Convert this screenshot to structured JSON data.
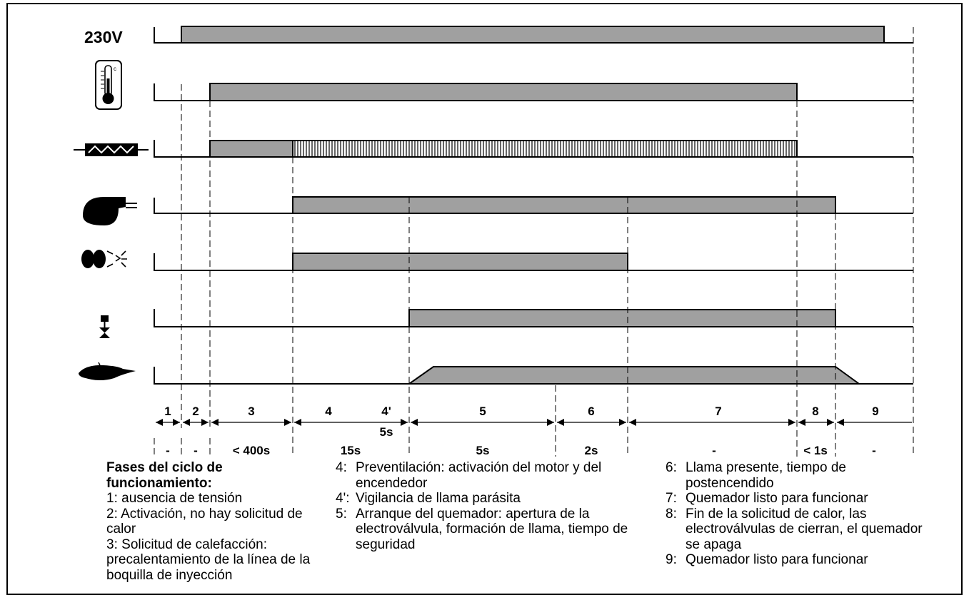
{
  "signals": [
    {
      "id": "voltage",
      "label": "230V",
      "icon": "none"
    },
    {
      "id": "thermostat",
      "label": "",
      "icon": "thermometer-icon"
    },
    {
      "id": "preheater",
      "label": "",
      "icon": "heater-resistor-icon"
    },
    {
      "id": "motor",
      "label": "",
      "icon": "fan-motor-icon"
    },
    {
      "id": "igniter",
      "label": "",
      "icon": "igniter-spark-icon"
    },
    {
      "id": "valve",
      "label": "",
      "icon": "solenoid-valve-icon"
    },
    {
      "id": "flame",
      "label": "",
      "icon": "flame-icon"
    }
  ],
  "phases": [
    {
      "num": "1",
      "duration": "-"
    },
    {
      "num": "2",
      "duration": "-"
    },
    {
      "num": "3",
      "duration": "< 400s"
    },
    {
      "num": "4",
      "duration": "15s"
    },
    {
      "num": "4'",
      "duration": "5s"
    },
    {
      "num": "5",
      "duration": "5s"
    },
    {
      "num": "6",
      "duration": "2s"
    },
    {
      "num": "7",
      "duration": "-"
    },
    {
      "num": "8",
      "duration": "< 1s"
    },
    {
      "num": "9",
      "duration": "-"
    }
  ],
  "legend": {
    "title": "Fases del ciclo de funcionamiento:",
    "items": [
      {
        "num": "1:",
        "text": "ausencia de tensión"
      },
      {
        "num": "2:",
        "text": "Activación, no hay solicitud de calor"
      },
      {
        "num": "3:",
        "text": "Solicitud de calefacción: precalentamiento de la línea de la boquilla de inyección"
      },
      {
        "num": "4:",
        "text": "Preventilación: activación del motor y del encendedor"
      },
      {
        "num": "4':",
        "text": "Vigilancia de llama parásita"
      },
      {
        "num": "5:",
        "text": "Arranque del quemador: apertura de la electroválvula, formación de llama, tiempo de seguridad"
      },
      {
        "num": "6:",
        "text": "Llama presente, tiempo de postencendido"
      },
      {
        "num": "7:",
        "text": "Quemador listo para funcionar"
      },
      {
        "num": "8:",
        "text": "Fin de la solicitud de calor, las electroválvulas de cierran, el quemador se apaga"
      },
      {
        "num": "9:",
        "text": "Quemador listo para funcionar"
      }
    ]
  },
  "colors": {
    "bar_fill": "#a0a0a0",
    "line": "#000000",
    "background": "#ffffff"
  }
}
